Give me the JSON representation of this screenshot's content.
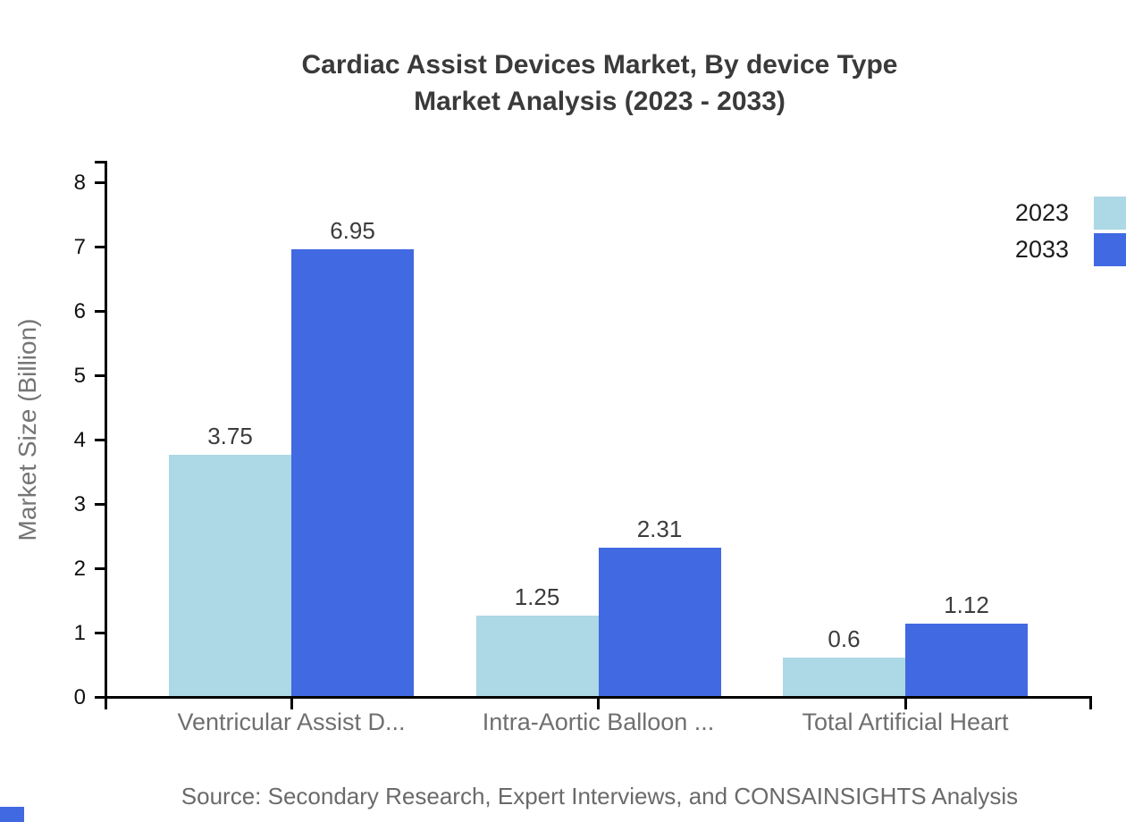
{
  "chart_data": {
    "type": "bar",
    "title_lines": [
      "Cardiac Assist Devices Market, By device Type",
      "Market Analysis (2023 - 2033)"
    ],
    "ylabel": "Market Size (Billion)",
    "ylim": [
      0,
      8
    ],
    "yticks": [
      0,
      1,
      2,
      3,
      4,
      5,
      6,
      7,
      8
    ],
    "categories": [
      "Ventricular Assist D...",
      "Intra-Aortic Balloon ...",
      "Total Artificial Heart"
    ],
    "series": [
      {
        "name": "2023",
        "color": "#ADD8E6",
        "values": [
          3.75,
          1.25,
          0.6
        ]
      },
      {
        "name": "2033",
        "color": "#4169E1",
        "values": [
          6.95,
          2.31,
          1.12
        ]
      }
    ],
    "grid": false,
    "legend_position": "top-right"
  },
  "source_note": "Source: Secondary Research, Expert Interviews, and CONSAINSIGHTS Analysis",
  "colors": {
    "axis": "#000000",
    "title_text": "#3a3a3a",
    "tick_label": "#111111",
    "value_label": "#3c3c3c",
    "category_label": "#6f6f6f",
    "axis_title": "#757575",
    "source_text": "#6a6a6a",
    "legend_text": "#1c1c1c",
    "series_2023": "#ADD8E6",
    "series_2033": "#4169E1",
    "corner_mark": "#4169E1"
  }
}
